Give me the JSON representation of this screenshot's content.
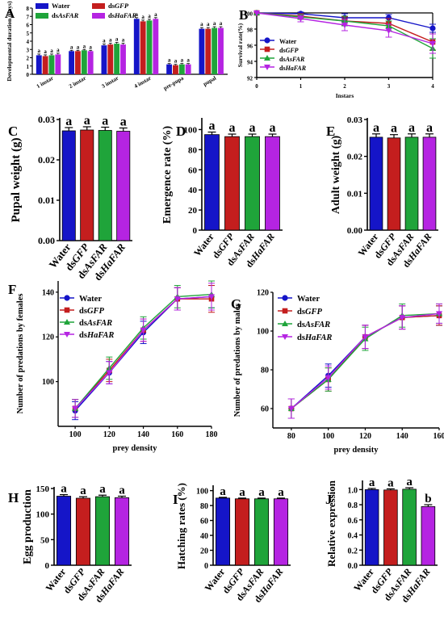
{
  "colors": {
    "Water": "#1515c8",
    "dsGFP": "#c41e1e",
    "dsAsFAR": "#1fa43a",
    "dsHaFAR": "#b524e2"
  },
  "groups": [
    {
      "prefix": "",
      "name": "Water"
    },
    {
      "prefix": "ds",
      "name": "GFP"
    },
    {
      "prefix": "ds",
      "name": "AsFAR"
    },
    {
      "prefix": "ds",
      "name": "HaFAR"
    }
  ],
  "letters": [
    "A",
    "B",
    "C",
    "D",
    "E",
    "F",
    "G",
    "H",
    "I",
    "J"
  ],
  "chart_data": [
    {
      "id": "A",
      "type": "bar",
      "ylabel": "Developmental duration (days)",
      "categories": [
        "1 instar",
        "2 instar",
        "3 instar",
        "4 instar",
        "pre-pupa",
        "pupal"
      ],
      "ylim": [
        0,
        8
      ],
      "yticks": [
        0,
        1,
        2,
        3,
        4,
        5,
        6,
        7,
        8
      ],
      "series": [
        {
          "name": "Water",
          "values": [
            2.3,
            2.8,
            3.5,
            6.7,
            1.2,
            5.5
          ],
          "err": [
            0.15,
            0.1,
            0.15,
            0.15,
            0.1,
            0.15
          ]
        },
        {
          "name": "dsGFP",
          "values": [
            2.2,
            2.8,
            3.6,
            6.4,
            1.1,
            5.5
          ],
          "err": [
            0.15,
            0.1,
            0.15,
            0.15,
            0.1,
            0.15
          ]
        },
        {
          "name": "dsAsFAR",
          "values": [
            2.3,
            2.9,
            3.7,
            6.5,
            1.2,
            5.6
          ],
          "err": [
            0.15,
            0.1,
            0.15,
            0.15,
            0.1,
            0.15
          ]
        },
        {
          "name": "dsHaFAR",
          "values": [
            2.4,
            2.8,
            3.6,
            6.7,
            1.2,
            5.6
          ],
          "err": [
            0.15,
            0.1,
            0.15,
            0.15,
            0.1,
            0.15
          ]
        }
      ],
      "bar_labels": "a"
    },
    {
      "id": "B",
      "type": "line",
      "ylabel": "Survival rate(%)",
      "xlabel": "Instars",
      "x": [
        0,
        1,
        2,
        3,
        4
      ],
      "xlim": [
        0,
        4
      ],
      "ylim": [
        92,
        100
      ],
      "yticks": [
        92,
        94,
        96,
        98,
        100
      ],
      "series": [
        {
          "name": "Water",
          "values": [
            100,
            99.9,
            99.4,
            99.4,
            98.1
          ],
          "err": [
            0,
            0.2,
            0.5,
            0.4,
            0.5
          ]
        },
        {
          "name": "dsGFP",
          "values": [
            100,
            99.6,
            99.0,
            98.7,
            96.4
          ],
          "err": [
            0,
            0.3,
            0.5,
            0.6,
            1.0
          ]
        },
        {
          "name": "dsAsFAR",
          "values": [
            100,
            99.5,
            99.0,
            98.4,
            95.6
          ],
          "err": [
            0,
            0.3,
            0.6,
            0.6,
            1.2
          ]
        },
        {
          "name": "dsHaFAR",
          "values": [
            100,
            99.3,
            98.5,
            97.8,
            96.2
          ],
          "err": [
            0,
            0.4,
            0.7,
            0.8,
            1.2
          ]
        }
      ]
    },
    {
      "id": "C",
      "type": "bar",
      "ylabel": "Pupal weight (g)",
      "ylim": [
        0,
        0.03
      ],
      "yticks": [
        0.0,
        0.01,
        0.02,
        0.03
      ],
      "tick_fmt": 2,
      "values": [
        0.0272,
        0.0274,
        0.0273,
        0.0271
      ],
      "err": [
        0.0008,
        0.0008,
        0.0008,
        0.0008
      ],
      "bar_labels": "a"
    },
    {
      "id": "D",
      "type": "bar",
      "ylabel": "Emergence rate (%)",
      "ylim": [
        0,
        110
      ],
      "yticks": [
        0,
        20,
        40,
        60,
        80,
        100
      ],
      "tick_fmt": 0,
      "values": [
        95,
        93,
        93,
        93
      ],
      "err": [
        2.5,
        2.5,
        2.5,
        2.5
      ],
      "bar_labels": "a"
    },
    {
      "id": "E",
      "type": "bar",
      "ylabel": "Adult weight (g)",
      "ylim": [
        0,
        0.03
      ],
      "yticks": [
        0.0,
        0.01,
        0.02,
        0.03
      ],
      "tick_fmt": 2,
      "values": [
        0.0252,
        0.025,
        0.0252,
        0.0252
      ],
      "err": [
        0.0009,
        0.0009,
        0.0009,
        0.0009
      ],
      "bar_labels": "a"
    },
    {
      "id": "F",
      "type": "line",
      "ylabel": "Number of predations by females",
      "xlabel": "prey density",
      "x": [
        100,
        120,
        140,
        160,
        180
      ],
      "xlim": [
        90,
        180
      ],
      "xticks": [
        100,
        120,
        140,
        160,
        180
      ],
      "ylim": [
        80,
        145
      ],
      "yticks": [
        100,
        120,
        140
      ],
      "series": [
        {
          "name": "Water",
          "values": [
            87,
            104,
            122,
            137,
            138
          ],
          "err": [
            4,
            5,
            5,
            5,
            5
          ]
        },
        {
          "name": "dsGFP",
          "values": [
            88,
            105,
            123,
            137,
            137
          ],
          "err": [
            4,
            5,
            5,
            5,
            6
          ]
        },
        {
          "name": "dsAsFAR",
          "values": [
            88,
            106,
            124,
            138,
            139
          ],
          "err": [
            4,
            5,
            5,
            5,
            6
          ]
        },
        {
          "name": "dsHaFAR",
          "values": [
            88,
            104,
            123,
            137,
            138
          ],
          "err": [
            4,
            5,
            5,
            5,
            6
          ]
        }
      ]
    },
    {
      "id": "G",
      "type": "line",
      "ylabel": "Number of predations by males",
      "xlabel": "prey density",
      "x": [
        80,
        100,
        120,
        140,
        160
      ],
      "xlim": [
        70,
        160
      ],
      "xticks": [
        80,
        100,
        120,
        140,
        160
      ],
      "ylim": [
        50,
        120
      ],
      "yticks": [
        60,
        80,
        100,
        120
      ],
      "series": [
        {
          "name": "Water",
          "values": [
            60,
            77,
            97,
            107,
            108
          ],
          "err": [
            5,
            6,
            6,
            6,
            5
          ]
        },
        {
          "name": "dsGFP",
          "values": [
            60,
            75,
            97,
            107,
            108
          ],
          "err": [
            5,
            6,
            6,
            6,
            5
          ]
        },
        {
          "name": "dsAsFAR",
          "values": [
            60,
            75,
            96,
            108,
            109
          ],
          "err": [
            5,
            6,
            6,
            6,
            5
          ]
        },
        {
          "name": "dsHaFAR",
          "values": [
            60,
            76,
            97,
            107,
            109
          ],
          "err": [
            5,
            6,
            6,
            6,
            5
          ]
        }
      ]
    },
    {
      "id": "H",
      "type": "bar",
      "ylabel": "Egg production",
      "ylim": [
        0,
        150
      ],
      "yticks": [
        0,
        50,
        100,
        150
      ],
      "tick_fmt": 0,
      "values": [
        135,
        131,
        134,
        132
      ],
      "err": [
        3,
        3,
        3,
        3
      ],
      "bar_labels": "a"
    },
    {
      "id": "I",
      "type": "bar",
      "ylabel": "Hatching rates (%)",
      "ylim": [
        0,
        105
      ],
      "yticks": [
        0,
        20,
        40,
        60,
        80,
        100
      ],
      "tick_fmt": 0,
      "values": [
        90,
        89,
        89,
        89
      ],
      "err": [
        1,
        1,
        1,
        1
      ],
      "bar_labels": "a"
    },
    {
      "id": "J",
      "type": "bar",
      "ylabel": "Relative expression",
      "ylim": [
        0,
        1.1
      ],
      "yticks": [
        0.0,
        0.2,
        0.4,
        0.6,
        0.8,
        1.0
      ],
      "tick_fmt": 1,
      "values": [
        1.0,
        0.995,
        1.005,
        0.775
      ],
      "err": [
        0.015,
        0.015,
        0.02,
        0.025
      ],
      "bar_labels": [
        "a",
        "a",
        "a",
        "b"
      ]
    }
  ]
}
